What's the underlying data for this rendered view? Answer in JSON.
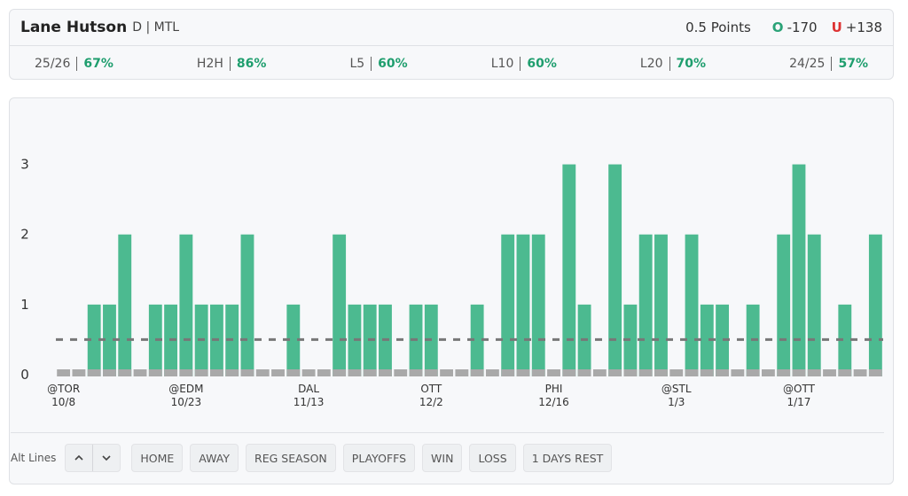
{
  "header": {
    "player": "Lane Hutson",
    "position": "D | MTL",
    "prop": "0.5 Points",
    "over_label": "O",
    "over_odds": "-170",
    "under_label": "U",
    "under_odds": "+138"
  },
  "stats": [
    {
      "label": "25/26",
      "value": "67%"
    },
    {
      "label": "H2H",
      "value": "86%"
    },
    {
      "label": "L5",
      "value": "60%"
    },
    {
      "label": "L10",
      "value": "60%"
    },
    {
      "label": "L20",
      "value": "70%"
    },
    {
      "label": "24/25",
      "value": "57%"
    }
  ],
  "chart_data": {
    "type": "bar",
    "color": "#4cba90",
    "zero_color": "#a9a9a9",
    "threshold": 0.5,
    "categories": [
      "@TOR",
      null,
      null,
      null,
      null,
      null,
      null,
      null,
      "@EDM",
      null,
      null,
      null,
      null,
      null,
      null,
      null,
      "DAL",
      null,
      null,
      null,
      null,
      null,
      null,
      null,
      "OTT",
      null,
      null,
      null,
      null,
      null,
      null,
      null,
      "PHI",
      null,
      null,
      null,
      null,
      null,
      null,
      null,
      "@STL",
      null,
      null,
      null,
      null,
      null,
      null,
      null,
      "@OTT",
      null,
      null,
      null,
      null,
      null
    ],
    "dates": [
      "10/8",
      null,
      null,
      null,
      null,
      null,
      null,
      null,
      "10/23",
      null,
      null,
      null,
      null,
      null,
      null,
      null,
      "11/13",
      null,
      null,
      null,
      null,
      null,
      null,
      null,
      "12/2",
      null,
      null,
      null,
      null,
      null,
      null,
      null,
      "12/16",
      null,
      null,
      null,
      null,
      null,
      null,
      null,
      "1/3",
      null,
      null,
      null,
      null,
      null,
      null,
      null,
      "1/17",
      null,
      null,
      null,
      null,
      null
    ],
    "values": [
      0,
      0,
      1,
      1,
      2,
      0,
      1,
      1,
      2,
      1,
      1,
      1,
      2,
      0,
      0,
      1,
      0,
      0,
      2,
      1,
      1,
      1,
      0,
      1,
      1,
      0,
      0,
      1,
      0,
      2,
      2,
      2,
      0,
      3,
      1,
      0,
      3,
      1,
      2,
      2,
      0,
      2,
      1,
      1,
      0,
      1,
      0,
      2,
      3,
      2,
      0,
      1,
      0,
      2
    ],
    "ylim": [
      0,
      3.5
    ],
    "yticks": [
      0,
      1,
      2,
      3
    ]
  },
  "controls": {
    "alt_lines": "Alt Lines",
    "filters": [
      "HOME",
      "AWAY",
      "REG SEASON",
      "PLAYOFFS",
      "WIN",
      "LOSS",
      "1 DAYS REST"
    ]
  }
}
